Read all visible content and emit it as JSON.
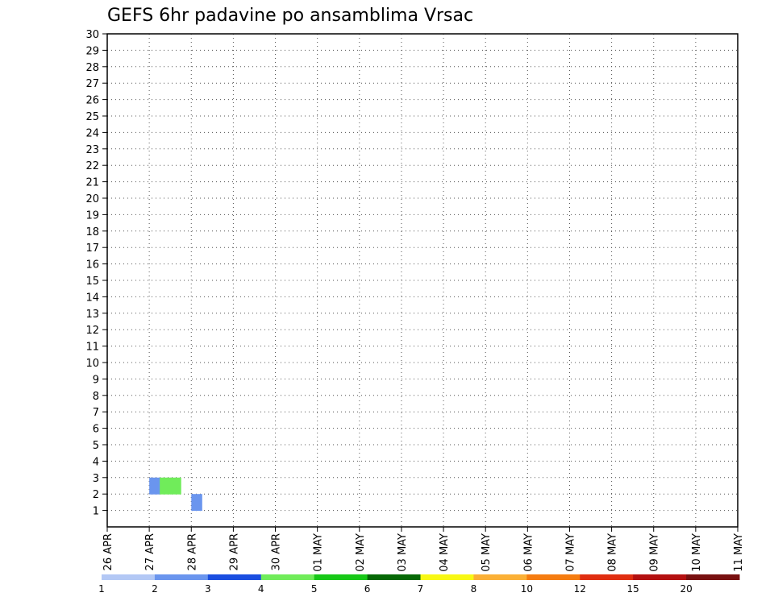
{
  "chart_data": {
    "type": "heatmap",
    "title": "GEFS 6hr padavine po ansamblima Vrsac",
    "x_tick_labels": [
      "26 APR",
      "27 APR",
      "28 APR",
      "29 APR",
      "30 APR",
      "01 MAY",
      "02 MAY",
      "03 MAY",
      "04 MAY",
      "05 MAY",
      "06 MAY",
      "07 MAY",
      "08 MAY",
      "09 MAY",
      "10 MAY",
      "11 MAY"
    ],
    "y_tick_labels": [
      "1",
      "2",
      "3",
      "4",
      "5",
      "6",
      "7",
      "8",
      "9",
      "10",
      "11",
      "12",
      "13",
      "14",
      "15",
      "16",
      "17",
      "18",
      "19",
      "20",
      "21",
      "22",
      "23",
      "24",
      "25",
      "26",
      "27",
      "28",
      "29",
      "30"
    ],
    "x_range": [
      "26 APR 00Z",
      "11 MAY 00Z"
    ],
    "time_step_hours": 6,
    "y_range": [
      0,
      30
    ],
    "grid": true,
    "legend_placement": "bottom",
    "legend": {
      "labels": [
        "1",
        "2",
        "3",
        "4",
        "5",
        "6",
        "7",
        "8",
        "10",
        "12",
        "15",
        "20"
      ],
      "colors": [
        "#b3c8f5",
        "#6a95ee",
        "#1a4ee0",
        "#70ec5a",
        "#17c817",
        "#066806",
        "#f8f814",
        "#fbb036",
        "#f57c10",
        "#e02e10",
        "#b41010",
        "#781010"
      ]
    },
    "palette": [
      "#b3c8f5",
      "#6a95ee",
      "#1a4ee0",
      "#70ec5a",
      "#17c817",
      "#066806",
      "#f8f814",
      "#fbb036",
      "#f57c10",
      "#e02e10",
      "#b41010",
      "#781010"
    ],
    "cells": [
      [
        0,
        0,
        0,
        0,
        0,
        0,
        0,
        0,
        0,
        0,
        0,
        0,
        0,
        0,
        0,
        0,
        0,
        0,
        0,
        0,
        0,
        0,
        0,
        0,
        0,
        0,
        0,
        0,
        0,
        0,
        0,
        0,
        0,
        0,
        0,
        0,
        0,
        0,
        0,
        0,
        0,
        0,
        0,
        0,
        0,
        0,
        0,
        0,
        0,
        0,
        0,
        0,
        0,
        0,
        0,
        0,
        0,
        0,
        0,
        0
      ],
      [
        0,
        0,
        0,
        0,
        0,
        0,
        0,
        0,
        2,
        0,
        0,
        0,
        0,
        0,
        0,
        0,
        0,
        0,
        0,
        0,
        0,
        0,
        0,
        0,
        0,
        0,
        0,
        0,
        0,
        0,
        0,
        0,
        0,
        0,
        0,
        0,
        0,
        0,
        0,
        0,
        0,
        0,
        0,
        0,
        0,
        0,
        0,
        0,
        0,
        0,
        0,
        0,
        0,
        0,
        0,
        0,
        0,
        0,
        0,
        0
      ],
      [
        0,
        0,
        0,
        0,
        2,
        4,
        4,
        0,
        0,
        0,
        0,
        0,
        0,
        0,
        0,
        0,
        0,
        0,
        0,
        0,
        0,
        0,
        0,
        0,
        0,
        0,
        0,
        0,
        0,
        0,
        0,
        0,
        0,
        0,
        0,
        0,
        0,
        0,
        0,
        0,
        0,
        0,
        0,
        0,
        0,
        0,
        0,
        0,
        0,
        0,
        0,
        0,
        0,
        0,
        0,
        0,
        0,
        0,
        0,
        0
      ]
    ],
    "note_cells_encoding": "rows from member 1 (bottom) to 30 (top); columns are 6-hour steps from 26 APR 00Z; value 0 = no precipitation class drawn, n = index+1 into palette"
  }
}
